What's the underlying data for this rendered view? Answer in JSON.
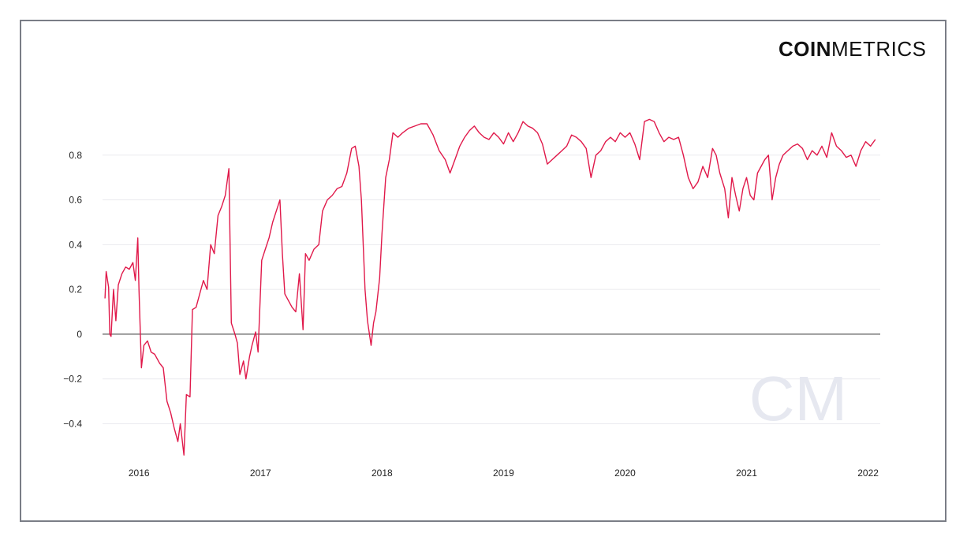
{
  "brand": {
    "bold": "COIN",
    "thin": "METRICS",
    "watermark": "CM"
  },
  "colors": {
    "line": "#e0194a",
    "grid": "#e9e9ee",
    "zero": "#333333",
    "frame": "#7a7d86",
    "watermark": "#e6e8f0"
  },
  "chart_data": {
    "type": "line",
    "title": "",
    "xlabel": "",
    "ylabel": "",
    "xlim": [
      2015.7,
      2022.1
    ],
    "ylim": [
      -0.55,
      1.0
    ],
    "yticks": [
      -0.4,
      -0.2,
      0,
      0.2,
      0.4,
      0.6,
      0.8
    ],
    "ytick_labels": [
      "−0.4",
      "−0.2",
      "0",
      "0.2",
      "0.4",
      "0.6",
      "0.8"
    ],
    "xticks": [
      2016,
      2017,
      2018,
      2019,
      2020,
      2021,
      2022
    ],
    "xtick_labels": [
      "2016",
      "2017",
      "2018",
      "2019",
      "2020",
      "2021",
      "2022"
    ],
    "grid": true,
    "series": [
      {
        "values": [
          [
            2015.72,
            0.16
          ],
          [
            2015.73,
            0.28
          ],
          [
            2015.75,
            0.21
          ],
          [
            2015.76,
            0.0
          ],
          [
            2015.77,
            -0.01
          ],
          [
            2015.79,
            0.2
          ],
          [
            2015.81,
            0.06
          ],
          [
            2015.83,
            0.22
          ],
          [
            2015.86,
            0.27
          ],
          [
            2015.89,
            0.3
          ],
          [
            2015.92,
            0.29
          ],
          [
            2015.95,
            0.32
          ],
          [
            2015.97,
            0.24
          ],
          [
            2015.99,
            0.43
          ],
          [
            2016.0,
            0.2
          ],
          [
            2016.02,
            -0.15
          ],
          [
            2016.04,
            -0.05
          ],
          [
            2016.07,
            -0.03
          ],
          [
            2016.1,
            -0.08
          ],
          [
            2016.13,
            -0.09
          ],
          [
            2016.17,
            -0.13
          ],
          [
            2016.2,
            -0.15
          ],
          [
            2016.23,
            -0.3
          ],
          [
            2016.26,
            -0.35
          ],
          [
            2016.29,
            -0.42
          ],
          [
            2016.32,
            -0.48
          ],
          [
            2016.34,
            -0.4
          ],
          [
            2016.37,
            -0.54
          ],
          [
            2016.39,
            -0.27
          ],
          [
            2016.42,
            -0.28
          ],
          [
            2016.44,
            0.11
          ],
          [
            2016.47,
            0.12
          ],
          [
            2016.5,
            0.18
          ],
          [
            2016.53,
            0.24
          ],
          [
            2016.56,
            0.2
          ],
          [
            2016.59,
            0.4
          ],
          [
            2016.62,
            0.36
          ],
          [
            2016.65,
            0.53
          ],
          [
            2016.68,
            0.57
          ],
          [
            2016.71,
            0.62
          ],
          [
            2016.74,
            0.74
          ],
          [
            2016.76,
            0.05
          ],
          [
            2016.79,
            0.0
          ],
          [
            2016.81,
            -0.04
          ],
          [
            2016.83,
            -0.18
          ],
          [
            2016.86,
            -0.12
          ],
          [
            2016.88,
            -0.2
          ],
          [
            2016.91,
            -0.1
          ],
          [
            2016.93,
            -0.05
          ],
          [
            2016.96,
            0.01
          ],
          [
            2016.98,
            -0.08
          ],
          [
            2017.01,
            0.33
          ],
          [
            2017.04,
            0.38
          ],
          [
            2017.07,
            0.43
          ],
          [
            2017.1,
            0.5
          ],
          [
            2017.13,
            0.55
          ],
          [
            2017.16,
            0.6
          ],
          [
            2017.18,
            0.36
          ],
          [
            2017.2,
            0.18
          ],
          [
            2017.23,
            0.15
          ],
          [
            2017.26,
            0.12
          ],
          [
            2017.29,
            0.1
          ],
          [
            2017.32,
            0.27
          ],
          [
            2017.35,
            0.02
          ],
          [
            2017.37,
            0.36
          ],
          [
            2017.4,
            0.33
          ],
          [
            2017.44,
            0.38
          ],
          [
            2017.48,
            0.4
          ],
          [
            2017.51,
            0.55
          ],
          [
            2017.55,
            0.6
          ],
          [
            2017.59,
            0.62
          ],
          [
            2017.63,
            0.65
          ],
          [
            2017.67,
            0.66
          ],
          [
            2017.71,
            0.72
          ],
          [
            2017.75,
            0.83
          ],
          [
            2017.78,
            0.84
          ],
          [
            2017.81,
            0.75
          ],
          [
            2017.83,
            0.6
          ],
          [
            2017.86,
            0.2
          ],
          [
            2017.88,
            0.06
          ],
          [
            2017.91,
            -0.05
          ],
          [
            2017.93,
            0.05
          ],
          [
            2017.95,
            0.1
          ],
          [
            2017.98,
            0.25
          ],
          [
            2018.0,
            0.45
          ],
          [
            2018.03,
            0.7
          ],
          [
            2018.06,
            0.78
          ],
          [
            2018.09,
            0.9
          ],
          [
            2018.13,
            0.88
          ],
          [
            2018.17,
            0.9
          ],
          [
            2018.22,
            0.92
          ],
          [
            2018.27,
            0.93
          ],
          [
            2018.32,
            0.94
          ],
          [
            2018.37,
            0.94
          ],
          [
            2018.42,
            0.89
          ],
          [
            2018.47,
            0.82
          ],
          [
            2018.52,
            0.78
          ],
          [
            2018.56,
            0.72
          ],
          [
            2018.6,
            0.78
          ],
          [
            2018.64,
            0.84
          ],
          [
            2018.68,
            0.88
          ],
          [
            2018.72,
            0.91
          ],
          [
            2018.76,
            0.93
          ],
          [
            2018.8,
            0.9
          ],
          [
            2018.84,
            0.88
          ],
          [
            2018.88,
            0.87
          ],
          [
            2018.92,
            0.9
          ],
          [
            2018.96,
            0.88
          ],
          [
            2019.0,
            0.85
          ],
          [
            2019.04,
            0.9
          ],
          [
            2019.08,
            0.86
          ],
          [
            2019.12,
            0.9
          ],
          [
            2019.16,
            0.95
          ],
          [
            2019.2,
            0.93
          ],
          [
            2019.24,
            0.92
          ],
          [
            2019.28,
            0.9
          ],
          [
            2019.32,
            0.85
          ],
          [
            2019.36,
            0.76
          ],
          [
            2019.4,
            0.78
          ],
          [
            2019.44,
            0.8
          ],
          [
            2019.48,
            0.82
          ],
          [
            2019.52,
            0.84
          ],
          [
            2019.56,
            0.89
          ],
          [
            2019.6,
            0.88
          ],
          [
            2019.64,
            0.86
          ],
          [
            2019.68,
            0.83
          ],
          [
            2019.72,
            0.7
          ],
          [
            2019.76,
            0.8
          ],
          [
            2019.8,
            0.82
          ],
          [
            2019.84,
            0.86
          ],
          [
            2019.88,
            0.88
          ],
          [
            2019.92,
            0.86
          ],
          [
            2019.96,
            0.9
          ],
          [
            2020.0,
            0.88
          ],
          [
            2020.04,
            0.9
          ],
          [
            2020.08,
            0.85
          ],
          [
            2020.12,
            0.78
          ],
          [
            2020.16,
            0.95
          ],
          [
            2020.2,
            0.96
          ],
          [
            2020.24,
            0.95
          ],
          [
            2020.28,
            0.9
          ],
          [
            2020.32,
            0.86
          ],
          [
            2020.36,
            0.88
          ],
          [
            2020.4,
            0.87
          ],
          [
            2020.44,
            0.88
          ],
          [
            2020.48,
            0.8
          ],
          [
            2020.52,
            0.7
          ],
          [
            2020.56,
            0.65
          ],
          [
            2020.6,
            0.68
          ],
          [
            2020.64,
            0.75
          ],
          [
            2020.68,
            0.7
          ],
          [
            2020.72,
            0.83
          ],
          [
            2020.75,
            0.8
          ],
          [
            2020.78,
            0.72
          ],
          [
            2020.82,
            0.65
          ],
          [
            2020.85,
            0.52
          ],
          [
            2020.88,
            0.7
          ],
          [
            2020.91,
            0.62
          ],
          [
            2020.94,
            0.55
          ],
          [
            2020.97,
            0.65
          ],
          [
            2021.0,
            0.7
          ],
          [
            2021.03,
            0.62
          ],
          [
            2021.06,
            0.6
          ],
          [
            2021.09,
            0.72
          ],
          [
            2021.12,
            0.75
          ],
          [
            2021.15,
            0.78
          ],
          [
            2021.18,
            0.8
          ],
          [
            2021.21,
            0.6
          ],
          [
            2021.24,
            0.7
          ],
          [
            2021.27,
            0.76
          ],
          [
            2021.3,
            0.8
          ],
          [
            2021.34,
            0.82
          ],
          [
            2021.38,
            0.84
          ],
          [
            2021.42,
            0.85
          ],
          [
            2021.46,
            0.83
          ],
          [
            2021.5,
            0.78
          ],
          [
            2021.54,
            0.82
          ],
          [
            2021.58,
            0.8
          ],
          [
            2021.62,
            0.84
          ],
          [
            2021.66,
            0.79
          ],
          [
            2021.7,
            0.9
          ],
          [
            2021.74,
            0.84
          ],
          [
            2021.78,
            0.82
          ],
          [
            2021.82,
            0.79
          ],
          [
            2021.86,
            0.8
          ],
          [
            2021.9,
            0.75
          ],
          [
            2021.94,
            0.82
          ],
          [
            2021.98,
            0.86
          ],
          [
            2022.02,
            0.84
          ],
          [
            2022.06,
            0.87
          ]
        ]
      }
    ]
  }
}
